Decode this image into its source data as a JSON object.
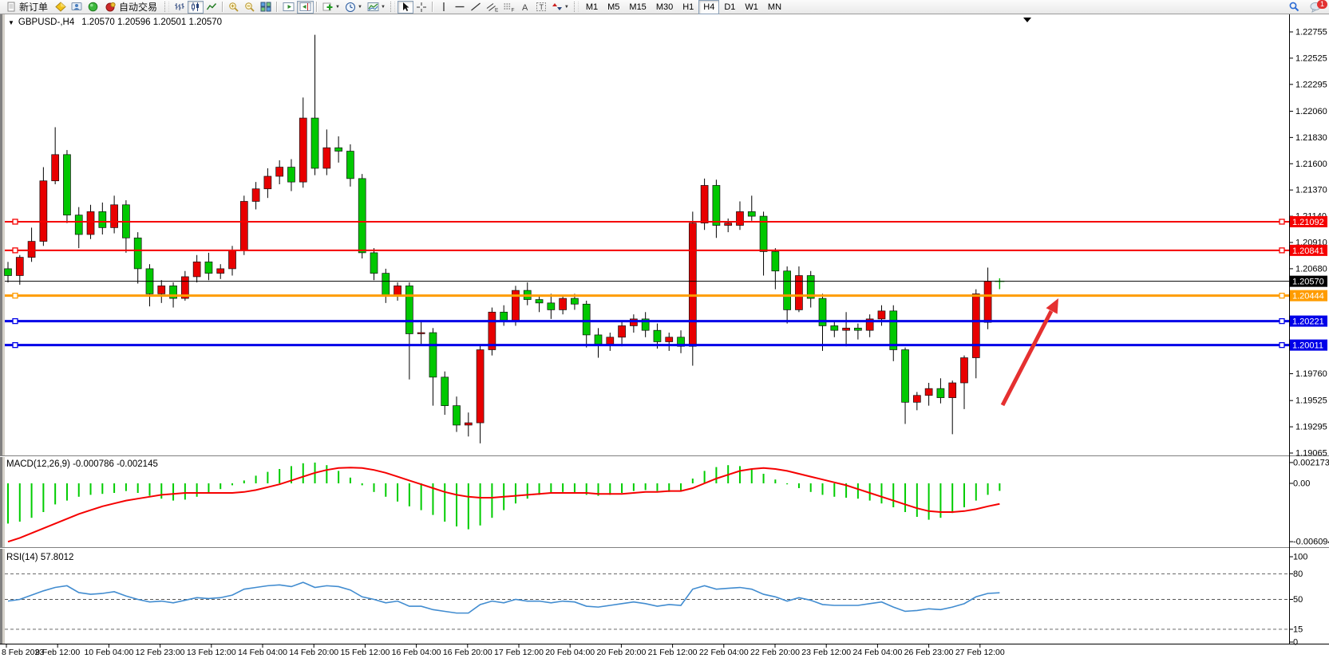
{
  "toolbar": {
    "new_order_label": "新订单",
    "auto_trading_label": "自动交易",
    "timeframes": [
      "M1",
      "M5",
      "M15",
      "M30",
      "H1",
      "H4",
      "D1",
      "W1",
      "MN"
    ],
    "active_timeframe": "H4",
    "chat_badge": "1",
    "glyphs": {
      "channel": "E",
      "fibo": "F",
      "text": "A",
      "label": "T"
    }
  },
  "chart": {
    "title_symbol": "GBPUSD-,H4",
    "title_quotes": "1.20570 1.20596 1.20501 1.20570"
  },
  "chart_data": {
    "type": "candlestick",
    "symbol": "GBPUSD-",
    "timeframe": "H4",
    "current_bar": {
      "open": "1.20570",
      "high": "1.20596",
      "low": "1.20501",
      "close": "1.20570"
    },
    "bull_color": "#e80000",
    "bear_color": "#00c800",
    "price_axis_ticks": [
      "1.22755",
      "1.22525",
      "1.22295",
      "1.22060",
      "1.21830",
      "1.21600",
      "1.21370",
      "1.21140",
      "1.20910",
      "1.20680",
      "1.20450",
      "1.20220",
      "1.19990",
      "1.19760",
      "1.19525",
      "1.19295",
      "1.19065"
    ],
    "axis_range": {
      "top": 1.22755,
      "bottom": 1.19065
    },
    "hlines": [
      {
        "price": 1.21092,
        "label": "1.21092",
        "color": "#f50000",
        "width": 2,
        "markers": true
      },
      {
        "price": 1.20841,
        "label": "1.20841",
        "color": "#f50000",
        "width": 2,
        "markers": true
      },
      {
        "price": 1.2057,
        "label": "1.20570",
        "color": "#000000",
        "width": 1,
        "markers": false
      },
      {
        "price": 1.20444,
        "label": "1.20444",
        "color": "#ff9c00",
        "width": 3,
        "markers": true
      },
      {
        "price": 1.20221,
        "label": "1.20221",
        "color": "#0000e8",
        "width": 3,
        "markers": true
      },
      {
        "price": 1.20011,
        "label": "1.20011",
        "color": "#0000e8",
        "width": 3,
        "markers": true
      }
    ],
    "candles": [
      [
        1.2068,
        1.2074,
        1.2056,
        1.2062
      ],
      [
        1.2062,
        1.208,
        1.2054,
        1.2078
      ],
      [
        1.2078,
        1.2104,
        1.2074,
        1.2092
      ],
      [
        1.2092,
        1.2157,
        1.2088,
        1.2145
      ],
      [
        1.2145,
        1.2192,
        1.2142,
        1.2168
      ],
      [
        1.2168,
        1.2172,
        1.2108,
        1.2115
      ],
      [
        1.2115,
        1.2122,
        1.2086,
        1.2098
      ],
      [
        1.2098,
        1.2124,
        1.2094,
        1.2118
      ],
      [
        1.2118,
        1.2126,
        1.2098,
        1.2104
      ],
      [
        1.2104,
        1.2132,
        1.2099,
        1.2124
      ],
      [
        1.2124,
        1.2128,
        1.2082,
        1.2095
      ],
      [
        1.2095,
        1.21,
        1.2055,
        1.2068
      ],
      [
        1.2068,
        1.2072,
        1.2035,
        1.2046
      ],
      [
        1.2046,
        1.2058,
        1.2038,
        1.2053
      ],
      [
        1.2053,
        1.2056,
        1.2034,
        1.2042
      ],
      [
        1.2042,
        1.2066,
        1.204,
        1.2061
      ],
      [
        1.2061,
        1.208,
        1.2056,
        1.2074
      ],
      [
        1.2074,
        1.2082,
        1.2058,
        1.2064
      ],
      [
        1.2064,
        1.2072,
        1.2059,
        1.2068
      ],
      [
        1.2068,
        1.2088,
        1.2062,
        1.2084
      ],
      [
        1.2084,
        1.2132,
        1.208,
        1.2127
      ],
      [
        1.2127,
        1.2144,
        1.212,
        1.2138
      ],
      [
        1.2138,
        1.2156,
        1.213,
        1.2149
      ],
      [
        1.2149,
        1.2163,
        1.2142,
        1.2157
      ],
      [
        1.2157,
        1.2164,
        1.2136,
        1.2144
      ],
      [
        1.2144,
        1.2218,
        1.2139,
        1.22
      ],
      [
        1.22,
        1.2273,
        1.215,
        1.2156
      ],
      [
        1.2156,
        1.219,
        1.215,
        1.2174
      ],
      [
        1.2174,
        1.2184,
        1.2161,
        1.2171
      ],
      [
        1.2171,
        1.2177,
        1.214,
        1.2147
      ],
      [
        1.2147,
        1.2151,
        1.2077,
        1.2082
      ],
      [
        1.2082,
        1.2086,
        1.2058,
        1.2064
      ],
      [
        1.2064,
        1.2068,
        1.2038,
        1.2044
      ],
      [
        1.2044,
        1.2056,
        1.204,
        1.2053
      ],
      [
        1.2053,
        1.2056,
        1.1971,
        1.2011
      ],
      [
        1.2011,
        1.2022,
        1.2002,
        1.2012
      ],
      [
        1.2012,
        1.2016,
        1.1948,
        1.1973
      ],
      [
        1.1973,
        1.1978,
        1.194,
        1.1948
      ],
      [
        1.1948,
        1.1956,
        1.1925,
        1.1931
      ],
      [
        1.1931,
        1.1942,
        1.1921,
        1.1933
      ],
      [
        1.1933,
        1.2001,
        1.1915,
        1.1997
      ],
      [
        1.1997,
        1.2034,
        1.1992,
        1.203
      ],
      [
        1.203,
        1.2036,
        1.2018,
        1.2022
      ],
      [
        1.2022,
        1.2053,
        1.2018,
        1.2049
      ],
      [
        1.2049,
        1.2056,
        1.2036,
        1.2041
      ],
      [
        1.2041,
        1.2044,
        1.203,
        1.2038
      ],
      [
        1.2038,
        1.2046,
        1.2024,
        1.2032
      ],
      [
        1.2032,
        1.2044,
        1.2028,
        1.2042
      ],
      [
        1.2042,
        1.2046,
        1.2032,
        1.2037
      ],
      [
        1.2037,
        1.204,
        1.1999,
        1.201
      ],
      [
        1.201,
        1.2016,
        1.199,
        1.2002
      ],
      [
        1.2002,
        1.2012,
        1.1996,
        1.2008
      ],
      [
        1.2008,
        1.2022,
        1.2,
        1.2018
      ],
      [
        1.2018,
        1.2028,
        1.2012,
        1.2024
      ],
      [
        1.2024,
        1.203,
        1.2008,
        1.2014
      ],
      [
        1.2014,
        1.202,
        1.1998,
        1.2004
      ],
      [
        1.2004,
        1.2012,
        1.1996,
        1.2008
      ],
      [
        1.2008,
        1.2014,
        1.1994,
        1.2
      ],
      [
        1.2,
        1.2118,
        1.1983,
        1.2108
      ],
      [
        1.2108,
        1.2147,
        1.2102,
        1.2141
      ],
      [
        1.2141,
        1.2146,
        1.2095,
        1.2106
      ],
      [
        1.2106,
        1.2112,
        1.21,
        1.2108
      ],
      [
        1.2106,
        1.2127,
        1.2102,
        1.2118
      ],
      [
        1.2118,
        1.2132,
        1.211,
        1.2114
      ],
      [
        1.2114,
        1.2118,
        1.2062,
        1.2083
      ],
      [
        1.2083,
        1.2086,
        1.205,
        1.2066
      ],
      [
        1.2066,
        1.207,
        1.202,
        1.2032
      ],
      [
        1.2032,
        1.207,
        1.203,
        1.2062
      ],
      [
        1.2062,
        1.2066,
        1.2034,
        1.2042
      ],
      [
        1.2042,
        1.2046,
        1.1996,
        1.2018
      ],
      [
        1.2018,
        1.2022,
        1.2008,
        1.2014
      ],
      [
        1.2014,
        1.203,
        1.2,
        1.2016
      ],
      [
        1.2016,
        1.202,
        1.2006,
        1.2014
      ],
      [
        1.2014,
        1.2028,
        1.2008,
        1.2024
      ],
      [
        1.2024,
        1.2036,
        1.2018,
        1.2031
      ],
      [
        1.2031,
        1.2036,
        1.1987,
        1.1997
      ],
      [
        1.1997,
        1.1999,
        1.1932,
        1.1951
      ],
      [
        1.1951,
        1.196,
        1.1944,
        1.1957
      ],
      [
        1.1957,
        1.1968,
        1.1948,
        1.1963
      ],
      [
        1.1963,
        1.1972,
        1.195,
        1.1955
      ],
      [
        1.1955,
        1.197,
        1.1923,
        1.1968
      ],
      [
        1.1968,
        1.1992,
        1.1945,
        1.199
      ],
      [
        1.199,
        1.205,
        1.1972,
        1.2046
      ],
      [
        1.2021,
        1.2069,
        1.2015,
        1.2057
      ],
      [
        1.2057,
        1.20596,
        1.20501,
        1.2057
      ]
    ],
    "time_axis_labels": [
      "8 Feb 2023",
      "9 Feb 12:00",
      "10 Feb 04:00",
      "12 Feb 23:00",
      "13 Feb 12:00",
      "14 Feb 04:00",
      "14 Feb 20:00",
      "15 Feb 12:00",
      "16 Feb 04:00",
      "16 Feb 20:00",
      "17 Feb 12:00",
      "20 Feb 04:00",
      "20 Feb 20:00",
      "21 Feb 12:00",
      "22 Feb 04:00",
      "22 Feb 20:00",
      "23 Feb 12:00",
      "24 Feb 04:00",
      "26 Feb 23:00",
      "27 Feb 12:00"
    ],
    "macd": {
      "label": "MACD(12,26,9) -0.000786 -0.002145",
      "main_value": "-0.000786",
      "signal_value": "-0.002145",
      "scale_ticks": [
        "0.002173",
        "0.00",
        "-0.006094"
      ],
      "hist_color": "#00cc00",
      "signal_color": "#f50000",
      "hist": [
        -0.0042,
        -0.004,
        -0.0036,
        -0.003,
        -0.0022,
        -0.0018,
        -0.0014,
        -0.0012,
        -0.0011,
        -0.001,
        -0.0008,
        -0.001,
        -0.0013,
        -0.0016,
        -0.0018,
        -0.0017,
        -0.0014,
        -0.001,
        -0.0006,
        -0.0002,
        0.0003,
        0.0008,
        0.0012,
        0.0015,
        0.0018,
        0.0021,
        0.00217,
        0.0019,
        0.0013,
        0.0006,
        -0.0002,
        -0.0009,
        -0.0014,
        -0.0019,
        -0.0024,
        -0.0028,
        -0.0033,
        -0.004,
        -0.0045,
        -0.0048,
        -0.0044,
        -0.0036,
        -0.0028,
        -0.0021,
        -0.0016,
        -0.0012,
        -0.001,
        -0.0009,
        -0.001,
        -0.0012,
        -0.0013,
        -0.0012,
        -0.001,
        -0.0008,
        -0.0007,
        -0.0008,
        -0.0009,
        -0.0008,
        0.0005,
        0.0013,
        0.0017,
        0.0019,
        0.0018,
        0.0015,
        0.001,
        0.0004,
        -0.0001,
        -0.0005,
        -0.0009,
        -0.0012,
        -0.0014,
        -0.0015,
        -0.0016,
        -0.0018,
        -0.0021,
        -0.0025,
        -0.003,
        -0.0035,
        -0.0038,
        -0.0036,
        -0.0031,
        -0.0025,
        -0.0018,
        -0.0012,
        -0.000786
      ],
      "signal": [
        -0.0061,
        -0.0057,
        -0.0052,
        -0.0047,
        -0.0042,
        -0.0037,
        -0.0032,
        -0.0028,
        -0.0024,
        -0.0021,
        -0.0018,
        -0.0016,
        -0.0014,
        -0.0012,
        -0.0011,
        -0.001,
        -0.001,
        -0.001,
        -0.001,
        -0.001,
        -0.0009,
        -0.0007,
        -0.0004,
        -0.0001,
        0.0003,
        0.0007,
        0.0011,
        0.0014,
        0.0016,
        0.00165,
        0.0016,
        0.0014,
        0.0011,
        0.0007,
        0.0003,
        -0.0001,
        -0.0005,
        -0.0009,
        -0.0012,
        -0.0014,
        -0.0015,
        -0.0015,
        -0.0014,
        -0.0013,
        -0.0012,
        -0.0011,
        -0.001,
        -0.001,
        -0.001,
        -0.001,
        -0.0011,
        -0.0011,
        -0.0011,
        -0.001,
        -0.0009,
        -0.0009,
        -0.0008,
        -0.0008,
        -0.0005,
        0.0,
        0.0005,
        0.0009,
        0.0013,
        0.0015,
        0.0016,
        0.0015,
        0.0013,
        0.001,
        0.0007,
        0.0004,
        0.0001,
        -0.0002,
        -0.0006,
        -0.001,
        -0.0014,
        -0.0018,
        -0.0022,
        -0.0026,
        -0.0029,
        -0.003,
        -0.003,
        -0.0029,
        -0.0027,
        -0.0024,
        -0.002145
      ]
    },
    "rsi": {
      "label": "RSI(14) 57.8012",
      "value": "57.8012",
      "scale_ticks": [
        "100",
        "80",
        "50",
        "15",
        "0"
      ],
      "dashed_levels": [
        80,
        50,
        15
      ],
      "color": "#418cd0",
      "points": [
        48,
        50,
        55,
        60,
        64,
        66,
        58,
        56,
        57,
        59,
        54,
        50,
        47,
        48,
        46,
        49,
        52,
        51,
        52,
        55,
        62,
        64,
        66,
        67,
        65,
        70,
        64,
        66,
        65,
        61,
        53,
        50,
        46,
        48,
        42,
        42,
        38,
        36,
        34,
        34,
        44,
        48,
        46,
        50,
        48,
        48,
        46,
        48,
        47,
        42,
        41,
        43,
        45,
        47,
        45,
        42,
        44,
        43,
        62,
        66,
        62,
        63,
        64,
        62,
        56,
        53,
        48,
        52,
        49,
        44,
        43,
        43,
        43,
        45,
        47,
        41,
        36,
        37,
        39,
        38,
        41,
        45,
        53,
        57,
        57.8
      ]
    },
    "arrow": {
      "color": "#e53030"
    }
  }
}
